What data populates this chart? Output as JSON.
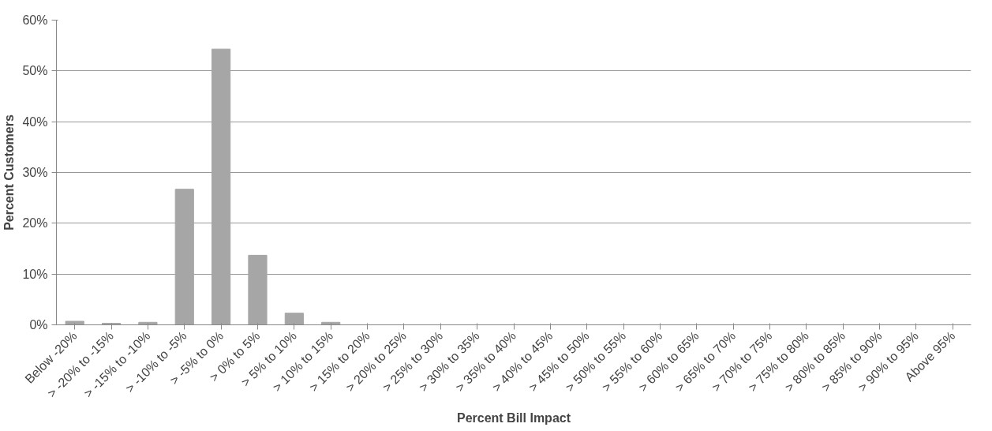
{
  "chart_data": {
    "type": "bar",
    "xlabel": "Percent Bill Impact",
    "ylabel": "Percent Customers",
    "categories": [
      "Below -20%",
      "> -20% to -15%",
      "> -15% to -10%",
      "> -10% to -5%",
      "> -5% to 0%",
      "> 0% to 5%",
      "> 5% to 10%",
      "> 10% to 15%",
      "> 15% to 20%",
      "> 20% to 25%",
      "> 25% to 30%",
      "> 30% to 35%",
      "> 35% to 40%",
      "> 40% to 45%",
      "> 45% to 50%",
      "> 50% to 55%",
      "> 55% to 60%",
      "> 60% to 65%",
      "> 65% to 70%",
      "> 70% to 75%",
      "> 75% to 80%",
      "> 80% to 85%",
      "> 85% to 90%",
      "> 90% to 95%",
      "Above 95%"
    ],
    "values": [
      0.7,
      0.3,
      0.5,
      26.7,
      54.3,
      13.7,
      2.3,
      0.5,
      0,
      0,
      0,
      0,
      0,
      0,
      0,
      0,
      0,
      0,
      0,
      0,
      0,
      0,
      0,
      0,
      0
    ],
    "color": "#a6a6a6",
    "ylim": [
      0,
      60
    ],
    "yticks": [
      {
        "value": 0,
        "label": "0%"
      },
      {
        "value": 10,
        "label": "10%"
      },
      {
        "value": 20,
        "label": "20%"
      },
      {
        "value": 30,
        "label": "30%"
      },
      {
        "value": 40,
        "label": "40%"
      },
      {
        "value": 50,
        "label": "50%"
      },
      {
        "value": 60,
        "label": "60%"
      }
    ],
    "grid": "y"
  }
}
